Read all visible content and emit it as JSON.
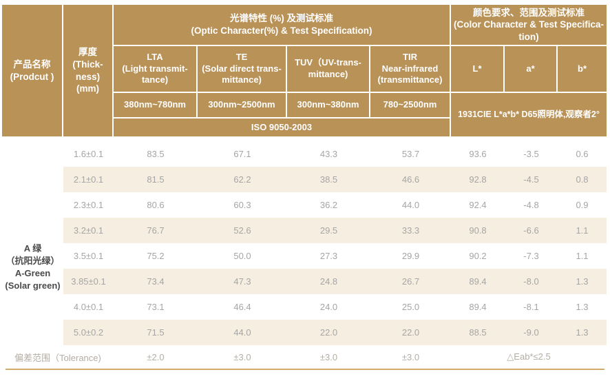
{
  "colors": {
    "tan": "#b99258",
    "cream": "#f6eee0",
    "body-text": "#a5a5a5",
    "dark-text": "#4a4a4a",
    "tolerance-text": "#b3ada4",
    "gold-line": "#d4aa6a",
    "header-text": "#ffffff"
  },
  "header": {
    "product_col": "产品名称\n(Prodcut )",
    "thickness_col": "厚度\n(Thick-\nness)\n(mm)",
    "optic_group": "光谱特性 (%) 及测试标准\n(Optic Character(%) & Test Specification)",
    "color_group": "颜色要求、范围及测试标准\n(Color Character & Test Specifica-\ntion)",
    "lta": "LTA\n(Light transmit-\ntance)",
    "te": "TE\n(Solar direct trans-\nmittance)",
    "tuv": "TUV（UV-trans-\nmittance)",
    "tir": "TIR\nNear-infrared\n(transmittance)",
    "lta_range": "380nm~780nm",
    "te_range": "300nm~2500nm",
    "tuv_range": "300nm~380nm",
    "tir_range": "780~2500nm",
    "l_star": "L*",
    "a_star": "a*",
    "b_star": "b*",
    "optic_standard": "ISO 9050-2003",
    "color_standard": "1931CIE L*a*b* D65照明体,观察者2°"
  },
  "product": "A 绿\n（抗阳光绿）\nA-Green\n(Solar green)",
  "rows": [
    {
      "thickness": "1.6±0.1",
      "lta": "83.5",
      "te": "67.1",
      "tuv": "43.3",
      "tir": "53.7",
      "L": "93.6",
      "a": "-3.5",
      "b": "0.6"
    },
    {
      "thickness": "2.1±0.1",
      "lta": "81.5",
      "te": "62.2",
      "tuv": "38.5",
      "tir": "46.6",
      "L": "92.8",
      "a": "-4.5",
      "b": "0.8"
    },
    {
      "thickness": "2.3±0.1",
      "lta": "80.6",
      "te": "60.3",
      "tuv": "36.2",
      "tir": "44.0",
      "L": "92.4",
      "a": "-4.8",
      "b": "0.9"
    },
    {
      "thickness": "3.2±0.1",
      "lta": "76.7",
      "te": "52.6",
      "tuv": "29.5",
      "tir": "33.3",
      "L": "90.8",
      "a": "-6.6",
      "b": "1.1"
    },
    {
      "thickness": "3.5±0.1",
      "lta": "75.2",
      "te": "50.0",
      "tuv": "27.3",
      "tir": "29.9",
      "L": "90.2",
      "a": "-7.3",
      "b": "1.1"
    },
    {
      "thickness": "3.85±0.1",
      "lta": "73.4",
      "te": "47.3",
      "tuv": "24.8",
      "tir": "26.7",
      "L": "89.4",
      "a": "-8.0",
      "b": "1.3"
    },
    {
      "thickness": "4.0±0.1",
      "lta": "73.1",
      "te": "46.4",
      "tuv": "24.0",
      "tir": "25.0",
      "L": "89.4",
      "a": "-8.1",
      "b": "1.3"
    },
    {
      "thickness": "5.0±0.2",
      "lta": "71.5",
      "te": "44.0",
      "tuv": "22.0",
      "tir": "22.0",
      "L": "88.5",
      "a": "-9.0",
      "b": "1.3"
    }
  ],
  "tolerance": {
    "label": "偏差范围（Tolerance)",
    "lta": "±2.0",
    "te": "±3.0",
    "tuv": "±3.0",
    "tir": "±3.0",
    "color": "△Eab*≤2.5"
  }
}
